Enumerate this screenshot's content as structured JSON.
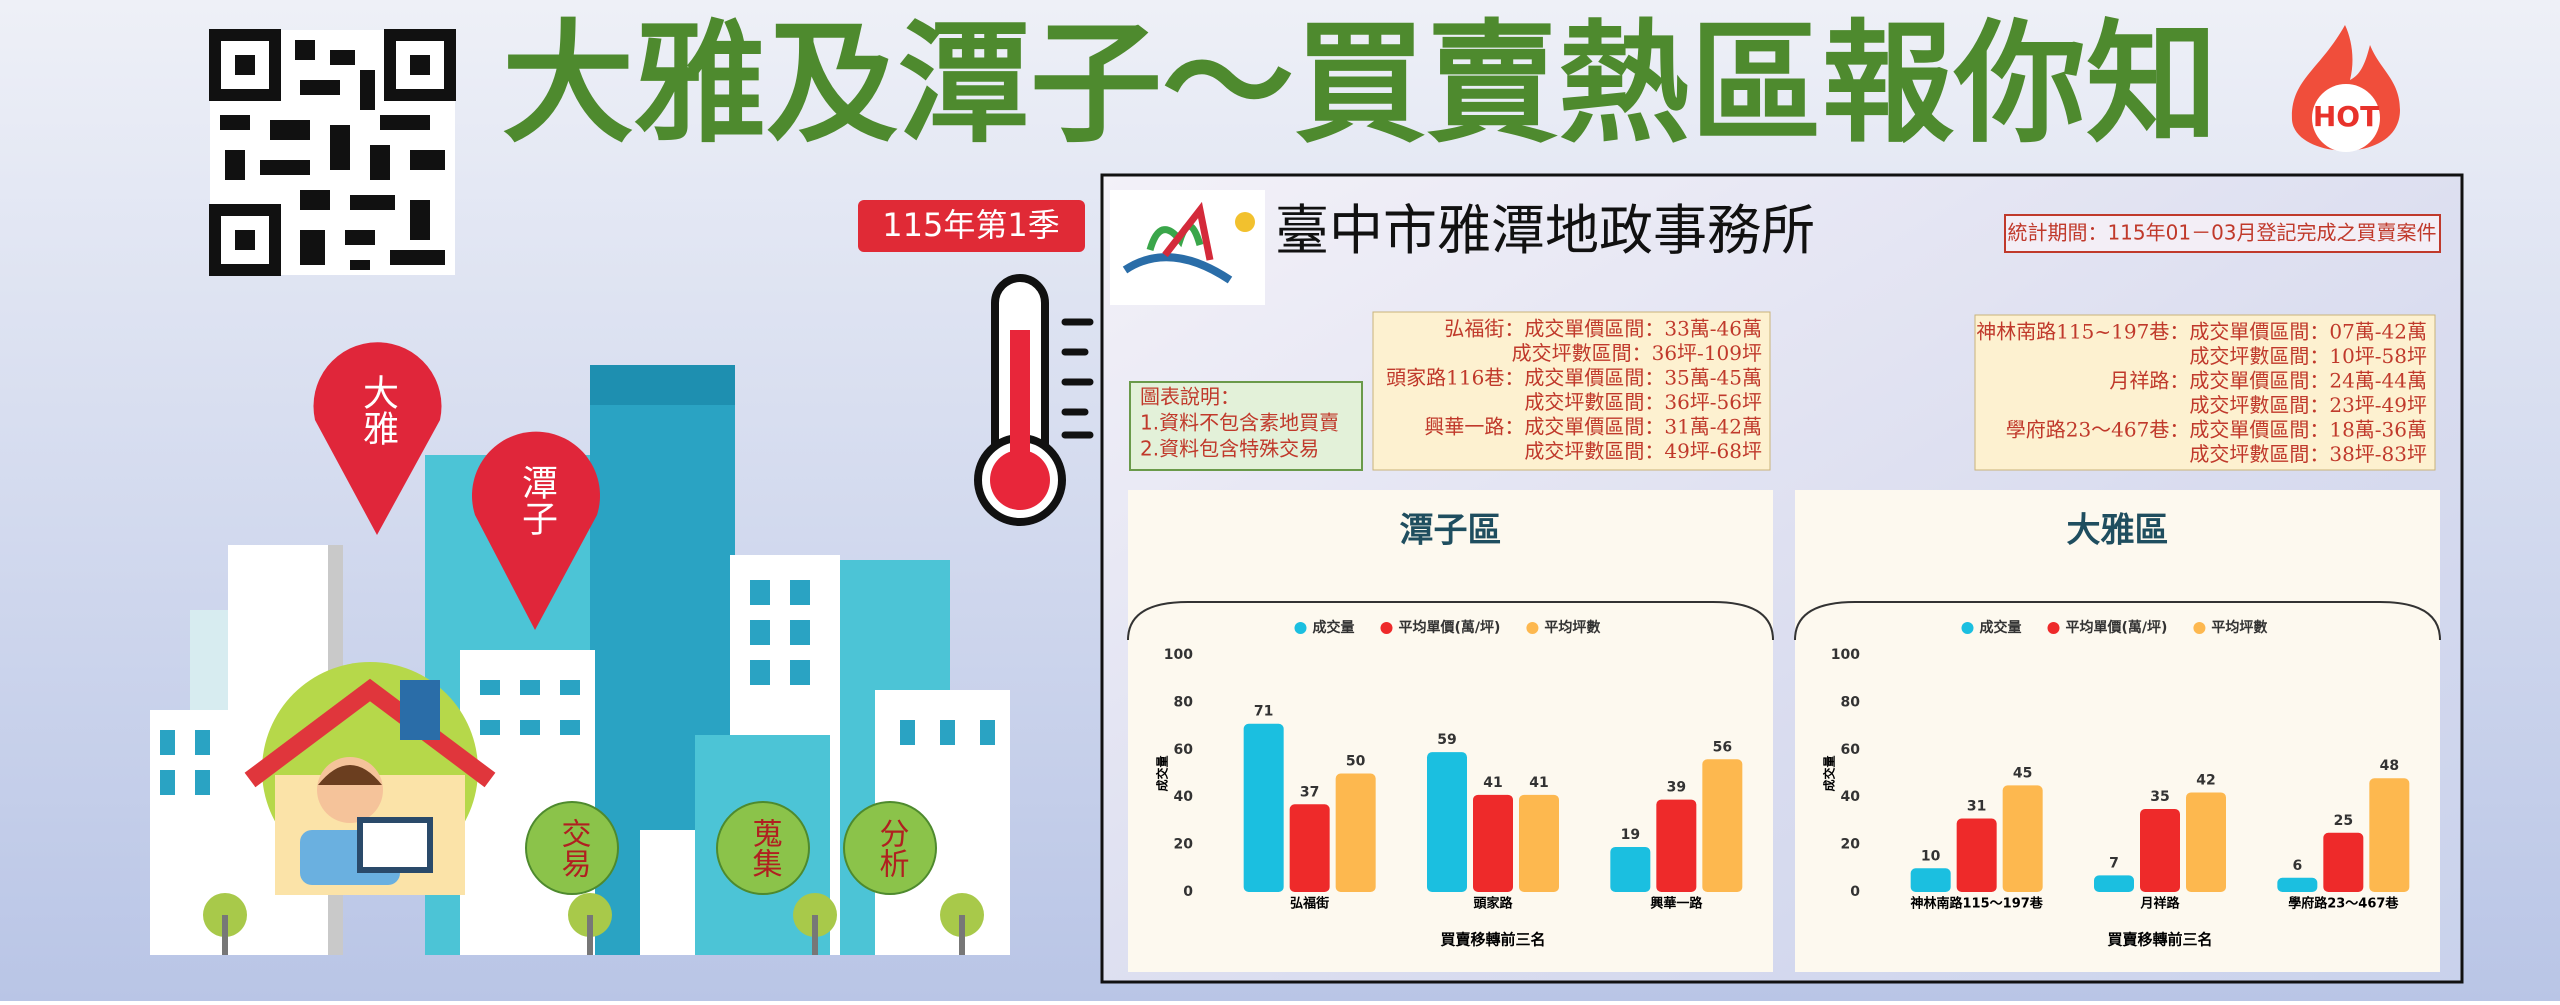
{
  "header": {
    "title": "大雅及潭子～買賣熱區報你知",
    "badge": "115年第1季",
    "hot": "HOT"
  },
  "office": {
    "name": "臺中市雅潭地政事務所",
    "period": "統計期間：115年01－03月登記完成之買賣案件"
  },
  "note": {
    "title": "圖表說明：",
    "lines": [
      "1.資料不包含素地買賣",
      "2.資料包含特殊交易"
    ]
  },
  "info_left": [
    "弘福街：成交單價區間：33萬-46萬",
    "成交坪數區間：36坪-109坪",
    "頭家路116巷：成交單價區間：35萬-45萬",
    "成交坪數區間：36坪-56坪",
    "興華一路：成交單價區間：31萬-42萬",
    "成交坪數區間：49坪-68坪"
  ],
  "info_right": [
    "神林南路115~197巷：成交單價區間：07萬-42萬",
    "成交坪數區間：10坪-58坪",
    "月祥路：成交單價區間：24萬-44萬",
    "成交坪數區間：23坪-49坪",
    "學府路23～467巷：成交單價區間：18萬-36萬",
    "成交坪數區間：38坪-83坪"
  ],
  "illustration": {
    "pins": [
      "大雅",
      "潭子"
    ],
    "circles": [
      "交易",
      "蒐集",
      "分析"
    ]
  },
  "chart_data": [
    {
      "type": "bar",
      "title": "潭子區",
      "categories": [
        "弘福街",
        "頭家路",
        "興華一路"
      ],
      "series": [
        {
          "name": "成交量",
          "color": "#1bbfe0",
          "values": [
            71,
            59,
            19
          ]
        },
        {
          "name": "平均單價(萬/坪)",
          "color": "#ee2a2a",
          "values": [
            37,
            41,
            39
          ]
        },
        {
          "name": "平均坪數",
          "color": "#fdb84f",
          "values": [
            50,
            41,
            56
          ]
        }
      ],
      "ylim": [
        0,
        100
      ],
      "yticks": [
        0,
        20,
        40,
        60,
        80,
        100
      ],
      "y_label": "成交量",
      "x_label": "買賣移轉前三名",
      "grid": false
    },
    {
      "type": "bar",
      "title": "大雅區",
      "categories": [
        "神林南路115～197巷",
        "月祥路",
        "學府路23～467巷"
      ],
      "series": [
        {
          "name": "成交量",
          "color": "#1bbfe0",
          "values": [
            10,
            7,
            6
          ]
        },
        {
          "name": "平均單價(萬/坪)",
          "color": "#ee2a2a",
          "values": [
            31,
            35,
            25
          ]
        },
        {
          "name": "平均坪數",
          "color": "#fdb84f",
          "values": [
            45,
            42,
            48
          ]
        }
      ],
      "ylim": [
        0,
        100
      ],
      "yticks": [
        0,
        20,
        40,
        60,
        80,
        100
      ],
      "y_label": "成交量",
      "x_label": "買賣移轉前三名",
      "grid": false
    }
  ]
}
